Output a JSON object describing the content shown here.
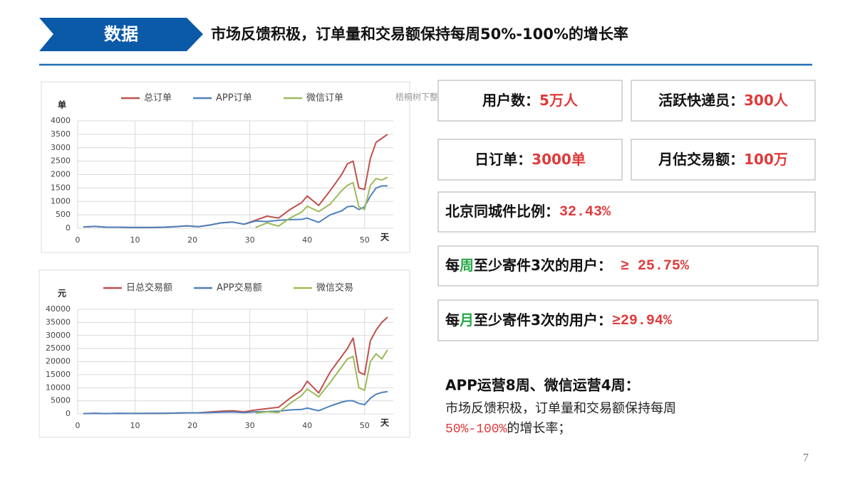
{
  "header": {
    "tag": "数据",
    "title": "市场反馈积极，订单量和交易额保持每周50%-100%的增长率"
  },
  "watermark": "梧桐树下整理",
  "stats": [
    {
      "label": "用户数：",
      "value": "5万人"
    },
    {
      "label": "活跃快递员：",
      "value": "300人"
    },
    {
      "label": "日订单：",
      "value": "3000单"
    },
    {
      "label": "月估交易额：",
      "value": "100万"
    }
  ],
  "beijing": {
    "label": "北京同城件比例：",
    "value": "32.43%"
  },
  "weekly": {
    "prefix": "每",
    "highlight": "周",
    "label": "至少寄件3次的用户：",
    "value": "≥ 25.75%"
  },
  "monthly": {
    "prefix": "每",
    "highlight": "月",
    "label": "至少寄件3次的用户：",
    "value": "≥29.94%"
  },
  "summary": {
    "heading": "APP运营8周、微信运营4周：",
    "text": "市场反馈积极，订单量和交易额保持每周",
    "highlight": "50%-100%",
    "text_end": "的增长率；"
  },
  "page_number": "7",
  "chart_data": [
    {
      "type": "line",
      "y_label": "单",
      "x_label": "天",
      "legend": "top",
      "grid": true,
      "x": [
        1,
        3,
        5,
        7,
        9,
        11,
        13,
        15,
        17,
        19,
        21,
        23,
        25,
        27,
        29,
        31,
        33,
        35,
        37,
        39,
        40,
        42,
        44,
        46,
        47,
        48,
        49,
        50,
        51,
        52,
        53,
        54
      ],
      "xlim": [
        0,
        55
      ],
      "xticks": [
        0,
        10,
        20,
        30,
        40,
        50
      ],
      "ylim": [
        0,
        4000
      ],
      "yticks": [
        0,
        500,
        1000,
        1500,
        2000,
        2500,
        3000,
        3500,
        4000
      ],
      "series": [
        {
          "name": "总订单",
          "color": "#c0504d",
          "values": [
            50,
            70,
            40,
            40,
            30,
            30,
            30,
            40,
            60,
            90,
            60,
            120,
            200,
            230,
            150,
            300,
            450,
            380,
            700,
            950,
            1200,
            850,
            1400,
            2000,
            2400,
            2500,
            1500,
            1450,
            2600,
            3200,
            3350,
            3500
          ]
        },
        {
          "name": "APP订单",
          "color": "#4f81bd",
          "values": [
            50,
            70,
            40,
            40,
            30,
            30,
            30,
            40,
            60,
            90,
            60,
            120,
            200,
            230,
            150,
            270,
            250,
            300,
            320,
            330,
            380,
            220,
            500,
            650,
            800,
            830,
            700,
            800,
            1200,
            1500,
            1580,
            1580
          ]
        },
        {
          "name": "微信订单",
          "color": "#9bbb59",
          "values": [
            null,
            null,
            null,
            null,
            null,
            null,
            null,
            null,
            null,
            null,
            null,
            null,
            null,
            null,
            null,
            30,
            200,
            80,
            380,
            600,
            820,
            620,
            900,
            1400,
            1600,
            1700,
            800,
            700,
            1600,
            1850,
            1800,
            1900
          ]
        }
      ]
    },
    {
      "type": "line",
      "y_label": "元",
      "x_label": "天",
      "legend": "top",
      "grid": true,
      "x": [
        1,
        3,
        5,
        7,
        9,
        11,
        13,
        15,
        17,
        19,
        21,
        23,
        25,
        27,
        29,
        31,
        33,
        35,
        37,
        39,
        40,
        42,
        44,
        46,
        47,
        48,
        49,
        50,
        51,
        52,
        53,
        54
      ],
      "xlim": [
        0,
        55
      ],
      "xticks": [
        0,
        10,
        20,
        30,
        40,
        50
      ],
      "ylim": [
        0,
        40000
      ],
      "yticks": [
        0,
        5000,
        10000,
        15000,
        20000,
        25000,
        30000,
        35000,
        40000
      ],
      "series": [
        {
          "name": "日总交易额",
          "color": "#c0504d",
          "values": [
            100,
            200,
            100,
            200,
            150,
            150,
            200,
            200,
            300,
            400,
            400,
            700,
            1000,
            1200,
            800,
            1500,
            2000,
            2500,
            6000,
            9000,
            12500,
            8000,
            16000,
            22000,
            25000,
            29000,
            16000,
            15000,
            28000,
            32000,
            35000,
            37000
          ]
        },
        {
          "name": "APP交易额",
          "color": "#4f81bd",
          "values": [
            100,
            200,
            100,
            200,
            150,
            150,
            200,
            200,
            300,
            400,
            400,
            500,
            600,
            700,
            500,
            800,
            900,
            1000,
            1500,
            1700,
            2200,
            1200,
            3000,
            4500,
            5000,
            5000,
            4000,
            3500,
            6000,
            7500,
            8200,
            8500
          ]
        },
        {
          "name": "微信交易",
          "color": "#9bbb59",
          "values": [
            null,
            null,
            null,
            null,
            null,
            null,
            null,
            null,
            null,
            null,
            null,
            null,
            null,
            null,
            null,
            300,
            800,
            500,
            4000,
            7000,
            9500,
            6500,
            12000,
            18000,
            21000,
            22000,
            10000,
            9000,
            20000,
            23000,
            21000,
            24500
          ]
        }
      ]
    }
  ]
}
